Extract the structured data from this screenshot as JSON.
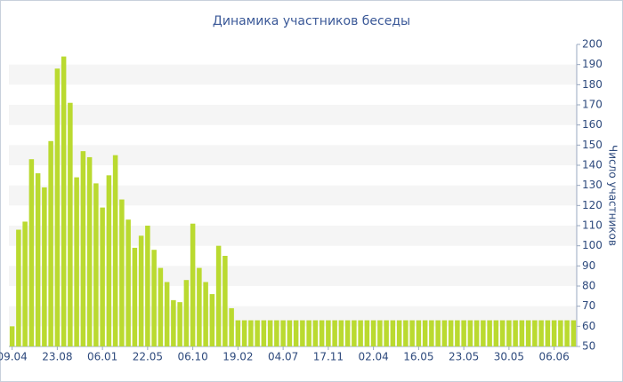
{
  "chart_data": {
    "type": "bar",
    "title": "Динамика участников беседы",
    "y_label": "Число участников",
    "categories": [
      "09.04",
      null,
      null,
      null,
      null,
      null,
      null,
      "23.08",
      null,
      null,
      null,
      null,
      null,
      null,
      "06.01",
      null,
      null,
      null,
      null,
      null,
      null,
      "22.05",
      null,
      null,
      null,
      null,
      null,
      null,
      "06.10",
      null,
      null,
      null,
      null,
      null,
      null,
      "19.02",
      null,
      null,
      null,
      null,
      null,
      null,
      "04.07",
      null,
      null,
      null,
      null,
      null,
      null,
      "17.11",
      null,
      null,
      null,
      null,
      null,
      null,
      "02.04",
      null,
      null,
      null,
      null,
      null,
      null,
      "16.05",
      null,
      null,
      null,
      null,
      null,
      null,
      "23.05",
      null,
      null,
      null,
      null,
      null,
      null,
      "30.05",
      null,
      null,
      null,
      null,
      null,
      null,
      "06.06",
      null,
      null,
      null
    ],
    "values": [
      60,
      108,
      112,
      143,
      136,
      129,
      152,
      188,
      194,
      171,
      134,
      147,
      144,
      131,
      119,
      135,
      145,
      123,
      113,
      99,
      105,
      110,
      98,
      89,
      82,
      73,
      72,
      83,
      111,
      89,
      82,
      76,
      100,
      95,
      69,
      63,
      63,
      63,
      63,
      63,
      63,
      63,
      63,
      63,
      63,
      63,
      63,
      63,
      63,
      63,
      63,
      63,
      63,
      63,
      63,
      63,
      63,
      63,
      63,
      63,
      63,
      63,
      63,
      63,
      63,
      63,
      63,
      63,
      63,
      63,
      63,
      63,
      63,
      63,
      63,
      63,
      63,
      63,
      63,
      63,
      63,
      63,
      63,
      63,
      63,
      63,
      63,
      63
    ],
    "color": "#bada30",
    "ylim": [
      50,
      200
    ],
    "yticks": [
      50,
      60,
      70,
      80,
      90,
      100,
      110,
      120,
      130,
      140,
      150,
      160,
      170,
      180,
      190,
      200
    ],
    "grid": true
  }
}
